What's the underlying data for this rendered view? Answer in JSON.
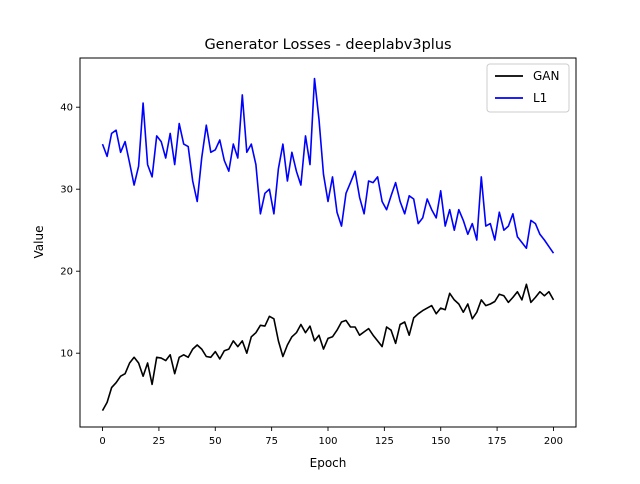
{
  "chart_data": {
    "type": "line",
    "title": "Generator Losses - deeplabv3plus",
    "xlabel": "Epoch",
    "ylabel": "Value",
    "xlim": [
      -10,
      210
    ],
    "ylim": [
      1,
      46
    ],
    "xticks": [
      0,
      25,
      50,
      75,
      100,
      125,
      150,
      175,
      200
    ],
    "yticks": [
      10,
      20,
      30,
      40
    ],
    "grid": false,
    "legend_position": "top-right",
    "series": [
      {
        "name": "GAN",
        "color": "#000000",
        "x": [
          0,
          2,
          4,
          6,
          8,
          10,
          12,
          14,
          16,
          18,
          20,
          22,
          24,
          26,
          28,
          30,
          32,
          34,
          36,
          38,
          40,
          42,
          44,
          46,
          48,
          50,
          52,
          54,
          56,
          58,
          60,
          62,
          64,
          66,
          68,
          70,
          72,
          74,
          76,
          78,
          80,
          82,
          84,
          86,
          88,
          90,
          92,
          94,
          96,
          98,
          100,
          102,
          104,
          106,
          108,
          110,
          112,
          114,
          116,
          118,
          120,
          122,
          124,
          126,
          128,
          130,
          132,
          134,
          136,
          138,
          140,
          142,
          144,
          146,
          148,
          150,
          152,
          154,
          156,
          158,
          160,
          162,
          164,
          166,
          168,
          170,
          172,
          174,
          176,
          178,
          180,
          182,
          184,
          186,
          188,
          190,
          192,
          194,
          196,
          198,
          200
        ],
        "values": [
          3,
          4,
          5.8,
          6.4,
          7.2,
          7.5,
          8.8,
          9.5,
          8.8,
          7.2,
          8.8,
          6.2,
          9.5,
          9.4,
          9.1,
          9.8,
          7.5,
          9.5,
          9.8,
          9.5,
          10.5,
          11,
          10.5,
          9.6,
          9.5,
          10.2,
          9.3,
          10.3,
          10.5,
          11.5,
          10.8,
          11.5,
          10,
          12,
          12.5,
          13.4,
          13.3,
          14.5,
          14.2,
          11.5,
          9.6,
          11,
          12,
          12.5,
          13.5,
          12.5,
          13.3,
          11.5,
          12.2,
          10.5,
          11.8,
          12,
          12.8,
          13.8,
          14,
          13.2,
          13.2,
          12.2,
          12.6,
          13,
          12.2,
          11.5,
          10.8,
          13.2,
          12.8,
          11.2,
          13.5,
          13.8,
          12.2,
          14.3,
          14.8,
          15.2,
          15.5,
          15.8,
          14.8,
          15.5,
          15.3,
          17.3,
          16.5,
          16,
          15,
          16,
          14.2,
          15,
          16.5,
          15.8,
          16,
          16.3,
          17.2,
          17,
          16.2,
          16.8,
          17.5,
          16.5,
          18.4,
          16.2,
          16.8,
          17.5,
          17,
          17.5,
          16.5
        ]
      },
      {
        "name": "L1",
        "color": "#0000ff",
        "x": [
          0,
          2,
          4,
          6,
          8,
          10,
          12,
          14,
          16,
          18,
          20,
          22,
          24,
          26,
          28,
          30,
          32,
          34,
          36,
          38,
          40,
          42,
          44,
          46,
          48,
          50,
          52,
          54,
          56,
          58,
          60,
          62,
          64,
          66,
          68,
          70,
          72,
          74,
          76,
          78,
          80,
          82,
          84,
          86,
          88,
          90,
          92,
          94,
          96,
          98,
          100,
          102,
          104,
          106,
          108,
          110,
          112,
          114,
          116,
          118,
          120,
          122,
          124,
          126,
          128,
          130,
          132,
          134,
          136,
          138,
          140,
          142,
          144,
          146,
          148,
          150,
          152,
          154,
          156,
          158,
          160,
          162,
          164,
          166,
          168,
          170,
          172,
          174,
          176,
          178,
          180,
          182,
          184,
          186,
          188,
          190,
          192,
          194,
          196,
          198,
          200
        ],
        "values": [
          35.5,
          34,
          36.8,
          37.2,
          34.5,
          35.8,
          33.2,
          30.5,
          32.8,
          40.5,
          33,
          31.5,
          36.5,
          35.8,
          33.8,
          36.8,
          33,
          38,
          35.5,
          35.2,
          31,
          28.5,
          33.8,
          37.8,
          34.5,
          34.8,
          36,
          33.5,
          32.2,
          35.5,
          33.8,
          41.5,
          34.5,
          35.5,
          33,
          27,
          29.5,
          30,
          27,
          32.5,
          35.5,
          31,
          34.5,
          32.2,
          30.5,
          36.5,
          33,
          43.5,
          38.5,
          31.8,
          28.5,
          31.5,
          27.2,
          25.5,
          29.5,
          30.8,
          32.2,
          29,
          27,
          31,
          30.8,
          31.5,
          28.5,
          27.5,
          29.2,
          30.8,
          28.5,
          27,
          29.2,
          28.8,
          25.8,
          26.5,
          28.8,
          27.5,
          26.5,
          29.8,
          25.5,
          27.5,
          25,
          27.5,
          26.2,
          24.5,
          25.8,
          23.8,
          31.5,
          25.5,
          25.8,
          23.8,
          27.2,
          25,
          25.5,
          27,
          24.2,
          23.5,
          22.8,
          26.2,
          25.8,
          24.5,
          23.8,
          23,
          22.2
        ]
      }
    ]
  }
}
